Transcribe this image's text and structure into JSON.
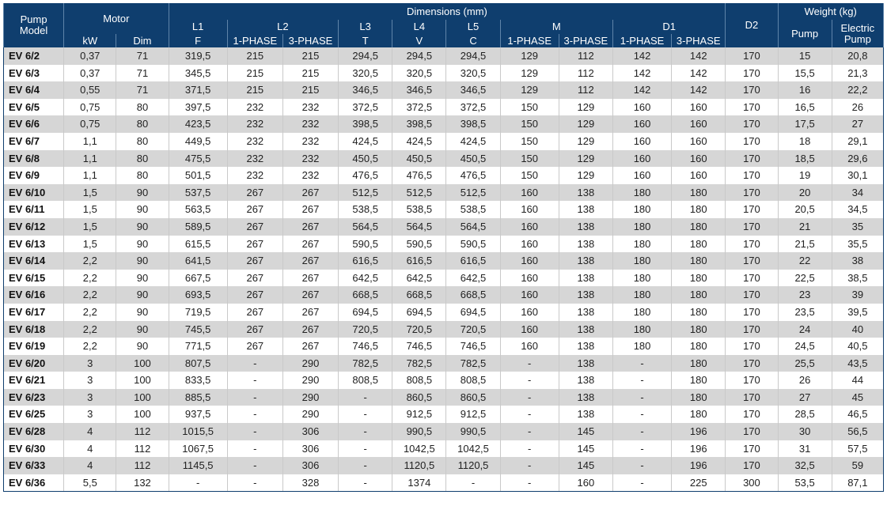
{
  "header": {
    "pump_model_line1": "Pump",
    "pump_model_line2": "Model",
    "motor": "Motor",
    "kw": "kW",
    "dim": "Dim",
    "dimensions": "Dimensions (mm)",
    "l1": "L1",
    "l2": "L2",
    "l3": "L3",
    "l4": "L4",
    "l5": "L5",
    "m": "M",
    "d1": "D1",
    "d2": "D2",
    "f": "F",
    "t": "T",
    "v": "V",
    "c": "C",
    "phase1": "1-PHASE",
    "phase3": "3-PHASE",
    "weight": "Weight (kg)",
    "pump": "Pump",
    "electric_line1": "Electric",
    "electric_line2": "Pump"
  },
  "rows": [
    [
      "EV 6/2",
      "0,37",
      "71",
      "319,5",
      "215",
      "215",
      "294,5",
      "294,5",
      "294,5",
      "129",
      "112",
      "142",
      "142",
      "170",
      "15",
      "20,8"
    ],
    [
      "EV 6/3",
      "0,37",
      "71",
      "345,5",
      "215",
      "215",
      "320,5",
      "320,5",
      "320,5",
      "129",
      "112",
      "142",
      "142",
      "170",
      "15,5",
      "21,3"
    ],
    [
      "EV 6/4",
      "0,55",
      "71",
      "371,5",
      "215",
      "215",
      "346,5",
      "346,5",
      "346,5",
      "129",
      "112",
      "142",
      "142",
      "170",
      "16",
      "22,2"
    ],
    [
      "EV 6/5",
      "0,75",
      "80",
      "397,5",
      "232",
      "232",
      "372,5",
      "372,5",
      "372,5",
      "150",
      "129",
      "160",
      "160",
      "170",
      "16,5",
      "26"
    ],
    [
      "EV 6/6",
      "0,75",
      "80",
      "423,5",
      "232",
      "232",
      "398,5",
      "398,5",
      "398,5",
      "150",
      "129",
      "160",
      "160",
      "170",
      "17,5",
      "27"
    ],
    [
      "EV 6/7",
      "1,1",
      "80",
      "449,5",
      "232",
      "232",
      "424,5",
      "424,5",
      "424,5",
      "150",
      "129",
      "160",
      "160",
      "170",
      "18",
      "29,1"
    ],
    [
      "EV 6/8",
      "1,1",
      "80",
      "475,5",
      "232",
      "232",
      "450,5",
      "450,5",
      "450,5",
      "150",
      "129",
      "160",
      "160",
      "170",
      "18,5",
      "29,6"
    ],
    [
      "EV 6/9",
      "1,1",
      "80",
      "501,5",
      "232",
      "232",
      "476,5",
      "476,5",
      "476,5",
      "150",
      "129",
      "160",
      "160",
      "170",
      "19",
      "30,1"
    ],
    [
      "EV 6/10",
      "1,5",
      "90",
      "537,5",
      "267",
      "267",
      "512,5",
      "512,5",
      "512,5",
      "160",
      "138",
      "180",
      "180",
      "170",
      "20",
      "34"
    ],
    [
      "EV 6/11",
      "1,5",
      "90",
      "563,5",
      "267",
      "267",
      "538,5",
      "538,5",
      "538,5",
      "160",
      "138",
      "180",
      "180",
      "170",
      "20,5",
      "34,5"
    ],
    [
      "EV 6/12",
      "1,5",
      "90",
      "589,5",
      "267",
      "267",
      "564,5",
      "564,5",
      "564,5",
      "160",
      "138",
      "180",
      "180",
      "170",
      "21",
      "35"
    ],
    [
      "EV 6/13",
      "1,5",
      "90",
      "615,5",
      "267",
      "267",
      "590,5",
      "590,5",
      "590,5",
      "160",
      "138",
      "180",
      "180",
      "170",
      "21,5",
      "35,5"
    ],
    [
      "EV 6/14",
      "2,2",
      "90",
      "641,5",
      "267",
      "267",
      "616,5",
      "616,5",
      "616,5",
      "160",
      "138",
      "180",
      "180",
      "170",
      "22",
      "38"
    ],
    [
      "EV 6/15",
      "2,2",
      "90",
      "667,5",
      "267",
      "267",
      "642,5",
      "642,5",
      "642,5",
      "160",
      "138",
      "180",
      "180",
      "170",
      "22,5",
      "38,5"
    ],
    [
      "EV 6/16",
      "2,2",
      "90",
      "693,5",
      "267",
      "267",
      "668,5",
      "668,5",
      "668,5",
      "160",
      "138",
      "180",
      "180",
      "170",
      "23",
      "39"
    ],
    [
      "EV 6/17",
      "2,2",
      "90",
      "719,5",
      "267",
      "267",
      "694,5",
      "694,5",
      "694,5",
      "160",
      "138",
      "180",
      "180",
      "170",
      "23,5",
      "39,5"
    ],
    [
      "EV 6/18",
      "2,2",
      "90",
      "745,5",
      "267",
      "267",
      "720,5",
      "720,5",
      "720,5",
      "160",
      "138",
      "180",
      "180",
      "170",
      "24",
      "40"
    ],
    [
      "EV 6/19",
      "2,2",
      "90",
      "771,5",
      "267",
      "267",
      "746,5",
      "746,5",
      "746,5",
      "160",
      "138",
      "180",
      "180",
      "170",
      "24,5",
      "40,5"
    ],
    [
      "EV 6/20",
      "3",
      "100",
      "807,5",
      "-",
      "290",
      "782,5",
      "782,5",
      "782,5",
      "-",
      "138",
      "-",
      "180",
      "170",
      "25,5",
      "43,5"
    ],
    [
      "EV 6/21",
      "3",
      "100",
      "833,5",
      "-",
      "290",
      "808,5",
      "808,5",
      "808,5",
      "-",
      "138",
      "-",
      "180",
      "170",
      "26",
      "44"
    ],
    [
      "EV 6/23",
      "3",
      "100",
      "885,5",
      "-",
      "290",
      "-",
      "860,5",
      "860,5",
      "-",
      "138",
      "-",
      "180",
      "170",
      "27",
      "45"
    ],
    [
      "EV 6/25",
      "3",
      "100",
      "937,5",
      "-",
      "290",
      "-",
      "912,5",
      "912,5",
      "-",
      "138",
      "-",
      "180",
      "170",
      "28,5",
      "46,5"
    ],
    [
      "EV 6/28",
      "4",
      "112",
      "1015,5",
      "-",
      "306",
      "-",
      "990,5",
      "990,5",
      "-",
      "145",
      "-",
      "196",
      "170",
      "30",
      "56,5"
    ],
    [
      "EV 6/30",
      "4",
      "112",
      "1067,5",
      "-",
      "306",
      "-",
      "1042,5",
      "1042,5",
      "-",
      "145",
      "-",
      "196",
      "170",
      "31",
      "57,5"
    ],
    [
      "EV 6/33",
      "4",
      "112",
      "1145,5",
      "-",
      "306",
      "-",
      "1120,5",
      "1120,5",
      "-",
      "145",
      "-",
      "196",
      "170",
      "32,5",
      "59"
    ],
    [
      "EV 6/36",
      "5,5",
      "132",
      "-",
      "-",
      "328",
      "-",
      "1374",
      "-",
      "-",
      "160",
      "-",
      "225",
      "300",
      "53,5",
      "87,1"
    ]
  ]
}
